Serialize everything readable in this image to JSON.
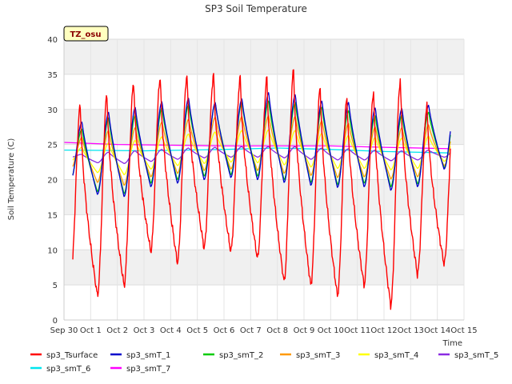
{
  "chart_data": {
    "type": "line",
    "title": "SP3 Soil Temperature",
    "xlabel": "Time",
    "ylabel": "Soil Temperature (C)",
    "ylim": [
      0,
      40
    ],
    "xlim": [
      0,
      15
    ],
    "yticks": [
      0,
      5,
      10,
      15,
      20,
      25,
      30,
      35,
      40
    ],
    "xticks": [
      {
        "x": 0,
        "label": "Sep 30"
      },
      {
        "x": 1,
        "label": "Oct 1"
      },
      {
        "x": 2,
        "label": "Oct 2"
      },
      {
        "x": 3,
        "label": "Oct 3"
      },
      {
        "x": 4,
        "label": "Oct 4"
      },
      {
        "x": 5,
        "label": "Oct 5"
      },
      {
        "x": 6,
        "label": "Oct 6"
      },
      {
        "x": 7,
        "label": "Oct 7"
      },
      {
        "x": 8,
        "label": "Oct 8"
      },
      {
        "x": 9,
        "label": "Oct 9"
      },
      {
        "x": 10,
        "label": "Oct 10"
      },
      {
        "x": 11,
        "label": "Oct 11"
      },
      {
        "x": 12,
        "label": "Oct 12"
      },
      {
        "x": 13,
        "label": "Oct 13"
      },
      {
        "x": 14,
        "label": "Oct 14"
      },
      {
        "x": 15,
        "label": "Oct 15"
      }
    ],
    "grid": true,
    "legend_position": "bottom",
    "badge": "TZ_osu",
    "series": [
      {
        "name": "sp3_Tsurface",
        "color": "#ff0000",
        "daily_max": [
          30.6,
          32.2,
          33.9,
          34.6,
          34.9,
          35.0,
          34.6,
          34.5,
          35.7,
          33.2,
          31.8,
          32.6,
          34.2,
          30.6
        ],
        "daily_min": [
          6.0,
          3.5,
          4.9,
          9.8,
          8.2,
          10.3,
          9.8,
          8.8,
          5.5,
          5.0,
          3.5,
          5.0,
          2.1,
          6.5,
          8.0
        ]
      },
      {
        "name": "sp3_smT_1",
        "color": "#0000cc",
        "daily_max": [
          28.2,
          29.6,
          30.3,
          31.1,
          31.6,
          31.0,
          31.5,
          32.4,
          32.1,
          31.2,
          31.0,
          30.2,
          30.1,
          30.6
        ],
        "daily_min": [
          19.9,
          17.9,
          17.6,
          19.0,
          19.5,
          20.0,
          20.3,
          20.0,
          19.6,
          19.2,
          18.9,
          19.0,
          18.5,
          19.0,
          21.5
        ]
      },
      {
        "name": "sp3_smT_2",
        "color": "#00cc00",
        "daily_max": [
          27.2,
          28.8,
          29.2,
          30.2,
          30.7,
          30.9,
          31.0,
          31.2,
          31.0,
          30.3,
          29.8,
          29.1,
          29.2,
          29.6
        ],
        "daily_min": [
          20.1,
          18.3,
          18.0,
          19.5,
          20.0,
          20.5,
          20.7,
          20.5,
          20.0,
          19.6,
          19.3,
          19.5,
          19.0,
          19.4,
          21.7
        ]
      },
      {
        "name": "sp3_smT_3",
        "color": "#ff9900",
        "daily_max": [
          26.0,
          27.0,
          27.4,
          28.2,
          28.6,
          28.9,
          29.0,
          29.1,
          29.0,
          28.4,
          28.0,
          27.5,
          27.4,
          27.8
        ],
        "daily_min": [
          21.5,
          19.6,
          19.2,
          20.4,
          20.9,
          21.3,
          21.5,
          21.3,
          20.9,
          20.6,
          20.3,
          20.4,
          20.1,
          20.4,
          22.0
        ]
      },
      {
        "name": "sp3_smT_4",
        "color": "#ffff00",
        "daily_max": [
          24.6,
          25.2,
          25.6,
          26.1,
          26.5,
          26.8,
          27.0,
          27.1,
          27.0,
          26.6,
          26.3,
          26.0,
          25.9,
          26.2
        ],
        "daily_min": [
          22.6,
          21.0,
          20.7,
          21.5,
          22.0,
          22.3,
          22.5,
          22.4,
          22.1,
          21.8,
          21.6,
          21.6,
          21.4,
          21.6,
          22.6
        ]
      },
      {
        "name": "sp3_smT_5",
        "color": "#8a2be2",
        "daily_max": [
          23.6,
          23.9,
          24.1,
          24.3,
          24.5,
          24.6,
          24.7,
          24.7,
          24.7,
          24.5,
          24.4,
          24.2,
          24.1,
          24.2
        ],
        "daily_min": [
          23.2,
          22.4,
          22.3,
          22.6,
          22.9,
          23.1,
          23.2,
          23.2,
          23.1,
          22.9,
          22.8,
          22.8,
          22.7,
          22.8,
          23.2
        ]
      },
      {
        "name": "sp3_smT_6",
        "color": "#00e5ee",
        "values_x": [
          0,
          3,
          6,
          8,
          10,
          12,
          14.5
        ],
        "values_y": [
          24.2,
          24.1,
          24.3,
          24.5,
          24.3,
          24.0,
          23.8
        ]
      },
      {
        "name": "sp3_smT_7",
        "color": "#ff00ff",
        "values_x": [
          0,
          2,
          4,
          6,
          8,
          10,
          12,
          14.5
        ],
        "values_y": [
          25.3,
          25.0,
          24.9,
          24.8,
          24.8,
          24.8,
          24.6,
          24.4
        ]
      }
    ]
  }
}
